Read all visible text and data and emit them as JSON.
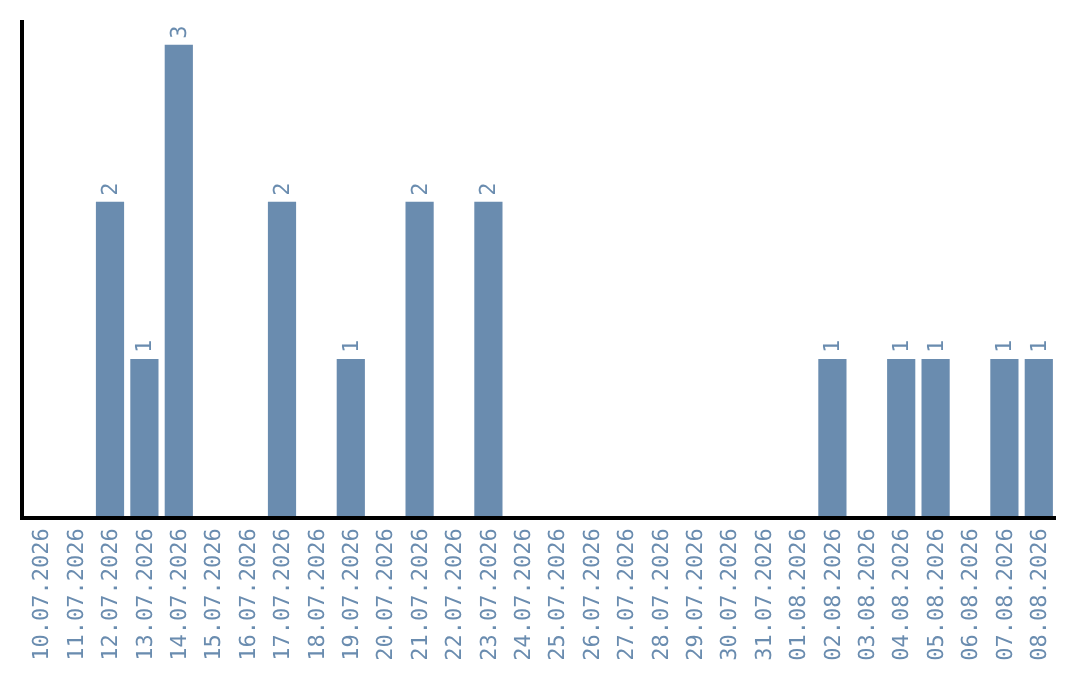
{
  "chart_data": {
    "type": "bar",
    "categories": [
      "10.07.2026",
      "11.07.2026",
      "12.07.2026",
      "13.07.2026",
      "14.07.2026",
      "15.07.2026",
      "16.07.2026",
      "17.07.2026",
      "18.07.2026",
      "19.07.2026",
      "20.07.2026",
      "21.07.2026",
      "22.07.2026",
      "23.07.2026",
      "24.07.2026",
      "25.07.2026",
      "26.07.2026",
      "27.07.2026",
      "28.07.2026",
      "29.07.2026",
      "30.07.2026",
      "31.07.2026",
      "01.08.2026",
      "02.08.2026",
      "03.08.2026",
      "04.08.2026",
      "05.08.2026",
      "06.08.2026",
      "07.08.2026",
      "08.08.2026"
    ],
    "values": [
      0,
      0,
      2,
      1,
      3,
      0,
      0,
      2,
      0,
      1,
      0,
      2,
      0,
      2,
      0,
      0,
      0,
      0,
      0,
      0,
      0,
      0,
      0,
      1,
      0,
      1,
      1,
      0,
      1,
      1
    ],
    "value_labels": [
      null,
      null,
      "2",
      "1",
      "3",
      null,
      null,
      "2",
      null,
      "1",
      null,
      "2",
      null,
      "2",
      null,
      null,
      null,
      null,
      null,
      null,
      null,
      null,
      null,
      "1",
      null,
      "1",
      "1",
      null,
      "1",
      "1"
    ],
    "color": "#6a8caf",
    "tick_labels": "x",
    "legend": false
  }
}
